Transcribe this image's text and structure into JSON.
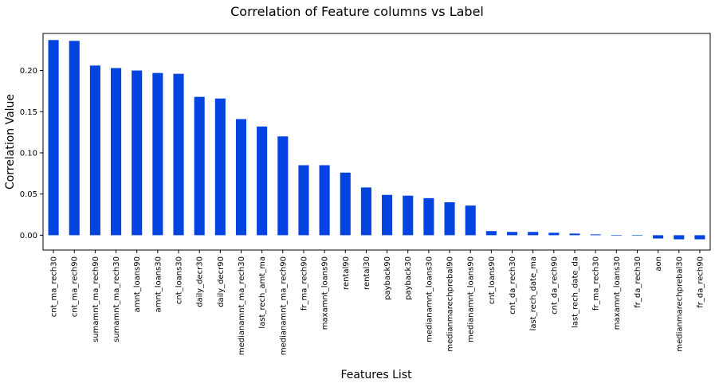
{
  "chart_data": {
    "type": "bar",
    "title": "Correlation of Feature columns vs Label",
    "xlabel": "Features List",
    "ylabel": "Correlation Value",
    "ylim": [
      -0.018,
      0.245
    ],
    "yticks": [
      "0.00",
      "0.05",
      "0.10",
      "0.15",
      "0.20"
    ],
    "grid": false,
    "bar_color": "#0343df",
    "categories": [
      "cnt_ma_rech30",
      "cnt_ma_rech90",
      "sumamnt_ma_rech90",
      "sumamnt_ma_rech30",
      "amnt_loans90",
      "amnt_loans30",
      "cnt_loans30",
      "daily_decr30",
      "daily_decr90",
      "medianamnt_ma_rech30",
      "last_rech_amt_ma",
      "medianamnt_ma_rech90",
      "fr_ma_rech90",
      "maxamnt_loans90",
      "rental90",
      "rental30",
      "payback90",
      "payback30",
      "medianamnt_loans30",
      "medianmarechprebal90",
      "medianamnt_loans90",
      "cnt_loans90",
      "cnt_da_rech30",
      "last_rech_date_ma",
      "cnt_da_rech90",
      "last_rech_date_da",
      "fr_ma_rech30",
      "maxamnt_loans30",
      "fr_da_rech30",
      "aon",
      "medianmarechprebal30",
      "fr_da_rech90"
    ],
    "values": [
      0.237,
      0.236,
      0.206,
      0.203,
      0.2,
      0.197,
      0.196,
      0.168,
      0.166,
      0.141,
      0.132,
      0.12,
      0.085,
      0.085,
      0.076,
      0.058,
      0.049,
      0.048,
      0.045,
      0.04,
      0.036,
      0.005,
      0.004,
      0.004,
      0.003,
      0.002,
      0.001,
      0.0,
      0.0,
      -0.004,
      -0.005,
      -0.005
    ]
  }
}
